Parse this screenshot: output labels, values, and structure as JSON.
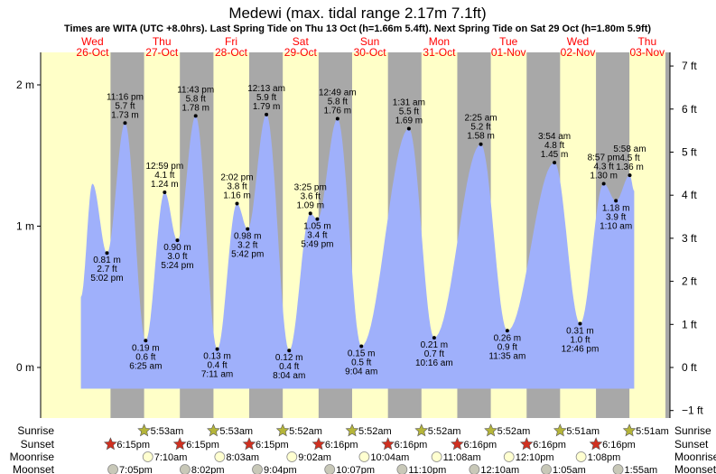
{
  "chart_data": {
    "type": "area",
    "title": "Medewi (max. tidal range 2.17m 7.1ft)",
    "subtitle": "Times are WITA (UTC +8.0hrs). Last Spring Tide on Thu 13 Oct (h=1.66m 5.4ft). Next Spring Tide on Sat 29 Oct (h=1.80m 5.9ft)",
    "days": [
      {
        "dow": "Wed",
        "date": "26-Oct"
      },
      {
        "dow": "Thu",
        "date": "27-Oct"
      },
      {
        "dow": "Fri",
        "date": "28-Oct"
      },
      {
        "dow": "Sat",
        "date": "29-Oct"
      },
      {
        "dow": "Sun",
        "date": "30-Oct"
      },
      {
        "dow": "Mon",
        "date": "31-Oct"
      },
      {
        "dow": "Tue",
        "date": "01-Nov"
      },
      {
        "dow": "Wed",
        "date": "02-Nov"
      },
      {
        "dow": "Thu",
        "date": "03-Nov"
      }
    ],
    "y_left": {
      "unit": "m",
      "ticks": [
        {
          "v": 0,
          "label": "0 m"
        },
        {
          "v": 1,
          "label": "1 m"
        },
        {
          "v": 2,
          "label": "2 m"
        }
      ],
      "range_m": [
        -0.3,
        2.25
      ]
    },
    "y_right": {
      "unit": "ft",
      "ticks": [
        {
          "v": -1,
          "label": "−1 ft"
        },
        {
          "v": 0,
          "label": "0 ft"
        },
        {
          "v": 1,
          "label": "1 ft"
        },
        {
          "v": 2,
          "label": "2 ft"
        },
        {
          "v": 3,
          "label": "3 ft"
        },
        {
          "v": 4,
          "label": "4 ft"
        },
        {
          "v": 5,
          "label": "5 ft"
        },
        {
          "v": 6,
          "label": "6 ft"
        },
        {
          "v": 7,
          "label": "7 ft"
        }
      ]
    },
    "curve_start": {
      "hours": 8,
      "m": 0.5
    },
    "curve_unlabeled_high": {
      "hours": 12,
      "m": 1.3
    },
    "curve_end": {
      "hours": 199.5,
      "m": 1.25
    },
    "extremes": [
      {
        "hours": 17.03,
        "m": 0.81,
        "ft": "2.7 ft",
        "time": "5:02 pm",
        "type": "low"
      },
      {
        "hours": 23.27,
        "m": 1.73,
        "ft": "5.7 ft",
        "time": "11:16 pm",
        "type": "high"
      },
      {
        "hours": 30.42,
        "m": 0.19,
        "ft": "0.6 ft",
        "time": "6:25 am",
        "type": "low"
      },
      {
        "hours": 36.98,
        "m": 1.24,
        "ft": "4.1 ft",
        "time": "12:59 pm",
        "type": "high"
      },
      {
        "hours": 41.4,
        "m": 0.9,
        "ft": "3.0 ft",
        "time": "5:24 pm",
        "type": "low"
      },
      {
        "hours": 47.72,
        "m": 1.78,
        "ft": "5.8 ft",
        "time": "11:43 pm",
        "type": "high"
      },
      {
        "hours": 55.18,
        "m": 0.13,
        "ft": "0.4 ft",
        "time": "7:11 am",
        "type": "low"
      },
      {
        "hours": 62.03,
        "m": 1.16,
        "ft": "3.8 ft",
        "time": "2:02 pm",
        "type": "high"
      },
      {
        "hours": 65.7,
        "m": 0.98,
        "ft": "3.2 ft",
        "time": "5:42 pm",
        "type": "low"
      },
      {
        "hours": 72.22,
        "m": 1.79,
        "ft": "5.9 ft",
        "time": "12:13 am",
        "type": "high"
      },
      {
        "hours": 80.07,
        "m": 0.12,
        "ft": "0.4 ft",
        "time": "8:04 am",
        "type": "low"
      },
      {
        "hours": 87.42,
        "m": 1.09,
        "ft": "3.6 ft",
        "time": "3:25 pm",
        "type": "high"
      },
      {
        "hours": 89.82,
        "m": 1.05,
        "ft": "3.4 ft",
        "time": "5:49 pm",
        "type": "low"
      },
      {
        "hours": 96.82,
        "m": 1.76,
        "ft": "5.8 ft",
        "time": "12:49 am",
        "type": "high"
      },
      {
        "hours": 105.07,
        "m": 0.15,
        "ft": "0.5 ft",
        "time": "9:04 am",
        "type": "low"
      },
      {
        "hours": 121.52,
        "m": 1.69,
        "ft": "5.5 ft",
        "time": "1:31 am",
        "type": "high"
      },
      {
        "hours": 130.27,
        "m": 0.21,
        "ft": "0.7 ft",
        "time": "10:16 am",
        "type": "low"
      },
      {
        "hours": 146.42,
        "m": 1.58,
        "ft": "5.2 ft",
        "time": "2:25 am",
        "type": "high"
      },
      {
        "hours": 155.58,
        "m": 0.26,
        "ft": "0.9 ft",
        "time": "11:35 am",
        "type": "low"
      },
      {
        "hours": 171.9,
        "m": 1.45,
        "ft": "4.8 ft",
        "time": "3:54 am",
        "type": "high"
      },
      {
        "hours": 180.77,
        "m": 0.31,
        "ft": "1.0 ft",
        "time": "12:46 pm",
        "type": "low"
      },
      {
        "hours": 188.95,
        "m": 1.3,
        "ft": "4.3 ft",
        "time": "8:57 pm",
        "type": "high"
      },
      {
        "hours": 193.17,
        "m": 1.18,
        "ft": "3.9 ft",
        "time": "1:10 am",
        "type": "low"
      },
      {
        "hours": 197.97,
        "m": 1.36,
        "ft": "4.5 ft",
        "time": "5:58 am",
        "type": "high"
      }
    ],
    "astro_labels": {
      "sunrise": "Sunrise",
      "sunset": "Sunset",
      "moonrise": "Moonrise",
      "moonset": "Moonset"
    },
    "sunrise": [
      {
        "hours": 29.88,
        "label": "5:53am"
      },
      {
        "hours": 53.88,
        "label": "5:53am"
      },
      {
        "hours": 77.87,
        "label": "5:52am"
      },
      {
        "hours": 101.87,
        "label": "5:52am"
      },
      {
        "hours": 125.87,
        "label": "5:52am"
      },
      {
        "hours": 149.87,
        "label": "5:52am"
      },
      {
        "hours": 173.85,
        "label": "5:51am"
      },
      {
        "hours": 197.85,
        "label": "5:51am"
      }
    ],
    "sunset": [
      {
        "hours": 18.25,
        "label": "6:15pm"
      },
      {
        "hours": 42.25,
        "label": "6:15pm"
      },
      {
        "hours": 66.25,
        "label": "6:15pm"
      },
      {
        "hours": 90.27,
        "label": "6:16pm"
      },
      {
        "hours": 114.27,
        "label": "6:16pm"
      },
      {
        "hours": 138.27,
        "label": "6:16pm"
      },
      {
        "hours": 162.27,
        "label": "6:16pm"
      },
      {
        "hours": 186.27,
        "label": "6:16pm"
      }
    ],
    "moonrise": [
      {
        "hours": 31.17,
        "label": "7:10am"
      },
      {
        "hours": 56.05,
        "label": "8:03am"
      },
      {
        "hours": 81.03,
        "label": "9:02am"
      },
      {
        "hours": 106.07,
        "label": "10:04am"
      },
      {
        "hours": 131.13,
        "label": "11:08am"
      },
      {
        "hours": 156.17,
        "label": "12:10pm"
      },
      {
        "hours": 181.13,
        "label": "1:08pm"
      }
    ],
    "moonset": [
      {
        "hours": 19.08,
        "label": "7:05pm"
      },
      {
        "hours": 44.03,
        "label": "8:02pm"
      },
      {
        "hours": 69.07,
        "label": "9:04pm"
      },
      {
        "hours": 94.12,
        "label": "10:07pm"
      },
      {
        "hours": 119.17,
        "label": "11:10pm"
      },
      {
        "hours": 144.17,
        "label": "12:10am"
      },
      {
        "hours": 169.08,
        "label": "1:05am"
      },
      {
        "hours": 193.92,
        "label": "1:55am"
      }
    ],
    "colors": {
      "day": "#ffffc8",
      "night": "#a8a8a8",
      "water": "#9fb0fb",
      "dayLabel": "#ff0000",
      "sunrise": "#b5b53a",
      "sunset": "#d03020",
      "moonrise": "#ffffd0",
      "moonset": "#c8c8b8"
    }
  }
}
